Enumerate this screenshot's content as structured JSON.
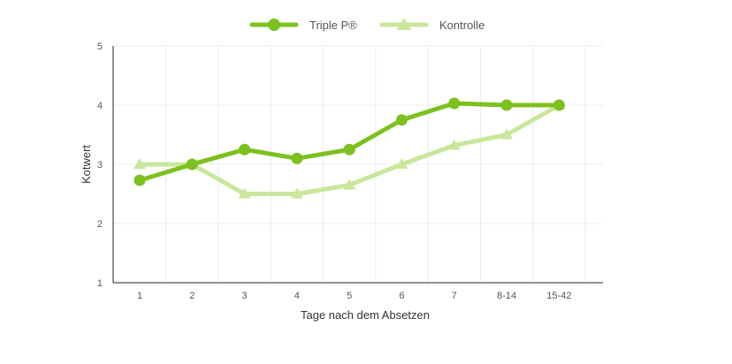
{
  "chart_data": {
    "type": "line",
    "categories": [
      "1",
      "2",
      "3",
      "4",
      "5",
      "6",
      "7",
      "8-14",
      "15-42"
    ],
    "series": [
      {
        "name": "Triple P®",
        "values": [
          2.73,
          3.0,
          3.25,
          3.1,
          3.25,
          3.75,
          4.03,
          4.0,
          4.0
        ],
        "color": "#7cc11f",
        "marker": "circle"
      },
      {
        "name": "Kontrolle",
        "values": [
          3.0,
          3.0,
          2.5,
          2.5,
          2.65,
          3.0,
          3.32,
          3.5,
          4.0
        ],
        "color": "#c9e79c",
        "marker": "triangle"
      }
    ],
    "xlabel": "Tage nach dem Absetzen",
    "ylabel": "Kotwert",
    "ylim": [
      1,
      5
    ],
    "yticks": [
      "1",
      "2",
      "3",
      "4",
      "5"
    ],
    "grid": true,
    "legend_position": "top-center"
  }
}
